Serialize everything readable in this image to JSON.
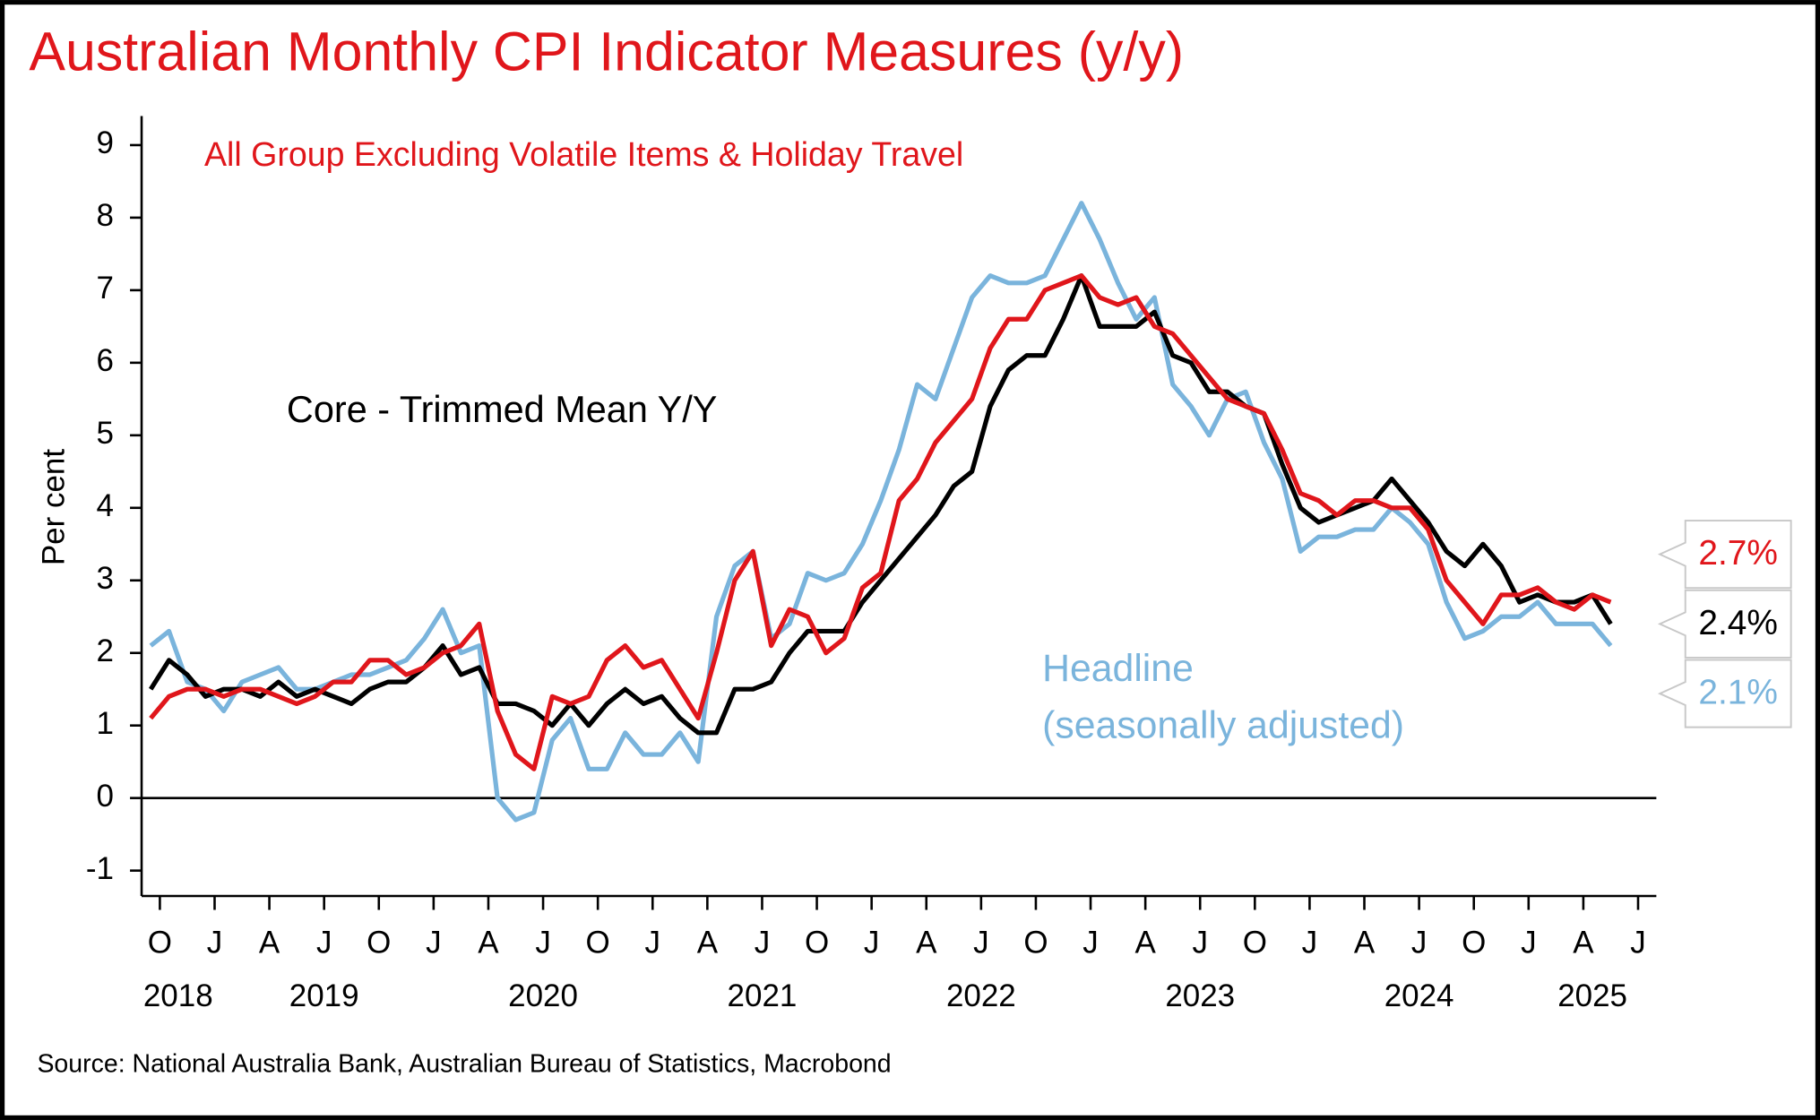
{
  "chart_data": {
    "type": "line",
    "title": "Australian Monthly CPI Indicator Measures (y/y)",
    "y_label": "Per cent",
    "source": "Source: National Australia Bank, Australian Bureau of Statistics, Macrobond",
    "x": [
      "2018-09",
      "2018-10",
      "2018-11",
      "2018-12",
      "2019-01",
      "2019-02",
      "2019-03",
      "2019-04",
      "2019-05",
      "2019-06",
      "2019-07",
      "2019-08",
      "2019-09",
      "2019-10",
      "2019-11",
      "2019-12",
      "2020-01",
      "2020-02",
      "2020-03",
      "2020-04",
      "2020-05",
      "2020-06",
      "2020-07",
      "2020-08",
      "2020-09",
      "2020-10",
      "2020-11",
      "2020-12",
      "2021-01",
      "2021-02",
      "2021-03",
      "2021-04",
      "2021-05",
      "2021-06",
      "2021-07",
      "2021-08",
      "2021-09",
      "2021-10",
      "2021-11",
      "2021-12",
      "2022-01",
      "2022-02",
      "2022-03",
      "2022-04",
      "2022-05",
      "2022-06",
      "2022-07",
      "2022-08",
      "2022-09",
      "2022-10",
      "2022-11",
      "2022-12",
      "2023-01",
      "2023-02",
      "2023-03",
      "2023-04",
      "2023-05",
      "2023-06",
      "2023-07",
      "2023-08",
      "2023-09",
      "2023-10",
      "2023-11",
      "2023-12",
      "2024-01",
      "2024-02",
      "2024-03",
      "2024-04",
      "2024-05",
      "2024-06",
      "2024-07",
      "2024-08",
      "2024-09",
      "2024-10",
      "2024-11",
      "2024-12",
      "2025-01",
      "2025-02",
      "2025-03",
      "2025-04",
      "2025-05"
    ],
    "series": [
      {
        "name": "All Group Excluding Volatile Items & Holiday Travel",
        "color": "#e0161b",
        "end_label": "2.7%",
        "values": [
          1.1,
          1.4,
          1.5,
          1.5,
          1.4,
          1.5,
          1.5,
          1.4,
          1.3,
          1.4,
          1.6,
          1.6,
          1.9,
          1.9,
          1.7,
          1.8,
          2.0,
          2.1,
          2.4,
          1.2,
          0.6,
          0.4,
          1.4,
          1.3,
          1.4,
          1.9,
          2.1,
          1.8,
          1.9,
          1.5,
          1.1,
          2.0,
          3.0,
          3.4,
          2.1,
          2.6,
          2.5,
          2.0,
          2.2,
          2.9,
          3.1,
          4.1,
          4.4,
          4.9,
          5.2,
          5.5,
          6.2,
          6.6,
          6.6,
          7.0,
          7.1,
          7.2,
          6.9,
          6.8,
          6.9,
          6.5,
          6.4,
          6.1,
          5.8,
          5.5,
          5.4,
          5.3,
          4.8,
          4.2,
          4.1,
          3.9,
          4.1,
          4.1,
          4.0,
          4.0,
          3.7,
          3.0,
          2.7,
          2.4,
          2.8,
          2.8,
          2.9,
          2.7,
          2.6,
          2.8,
          2.7
        ]
      },
      {
        "name": "Core - Trimmed Mean Y/Y",
        "color": "#000000",
        "end_label": "2.4%",
        "values": [
          1.5,
          1.9,
          1.7,
          1.4,
          1.5,
          1.5,
          1.4,
          1.6,
          1.4,
          1.5,
          1.4,
          1.3,
          1.5,
          1.6,
          1.6,
          1.8,
          2.1,
          1.7,
          1.8,
          1.3,
          1.3,
          1.2,
          1.0,
          1.3,
          1.0,
          1.3,
          1.5,
          1.3,
          1.4,
          1.1,
          0.9,
          0.9,
          1.5,
          1.5,
          1.6,
          2.0,
          2.3,
          2.3,
          2.3,
          2.7,
          3.0,
          3.3,
          3.6,
          3.9,
          4.3,
          4.5,
          5.4,
          5.9,
          6.1,
          6.1,
          6.6,
          7.2,
          6.5,
          6.5,
          6.5,
          6.7,
          6.1,
          6.0,
          5.6,
          5.6,
          5.4,
          5.3,
          4.6,
          4.0,
          3.8,
          3.9,
          4.0,
          4.1,
          4.4,
          4.1,
          3.8,
          3.4,
          3.2,
          3.5,
          3.2,
          2.7,
          2.8,
          2.7,
          2.7,
          2.8,
          2.4
        ]
      },
      {
        "name": "Headline",
        "subname": "(seasonally adjusted)",
        "color": "#7ab4dc",
        "end_label": "2.1%",
        "values": [
          2.1,
          2.3,
          1.6,
          1.5,
          1.2,
          1.6,
          1.7,
          1.8,
          1.5,
          1.5,
          1.6,
          1.7,
          1.7,
          1.8,
          1.9,
          2.2,
          2.6,
          2.0,
          2.1,
          0.0,
          -0.3,
          -0.2,
          0.8,
          1.1,
          0.4,
          0.4,
          0.9,
          0.6,
          0.6,
          0.9,
          0.5,
          2.5,
          3.2,
          3.4,
          2.2,
          2.4,
          3.1,
          3.0,
          3.1,
          3.5,
          4.1,
          4.8,
          5.7,
          5.5,
          6.2,
          6.9,
          7.2,
          7.1,
          7.1,
          7.2,
          7.7,
          8.2,
          7.7,
          7.1,
          6.6,
          6.9,
          5.7,
          5.4,
          5.0,
          5.5,
          5.6,
          4.9,
          4.4,
          3.4,
          3.6,
          3.6,
          3.7,
          3.7,
          4.0,
          3.8,
          3.5,
          2.7,
          2.2,
          2.3,
          2.5,
          2.5,
          2.7,
          2.4,
          2.4,
          2.4,
          2.1
        ]
      }
    ],
    "xlim": [
      "2018-09",
      "2025-08"
    ],
    "xticks": [
      {
        "value": "2018-10",
        "label": "O"
      },
      {
        "value": "2019-01",
        "label": "J"
      },
      {
        "value": "2019-04",
        "label": "A"
      },
      {
        "value": "2019-07",
        "label": "J"
      },
      {
        "value": "2019-10",
        "label": "O"
      },
      {
        "value": "2020-01",
        "label": "J"
      },
      {
        "value": "2020-04",
        "label": "A"
      },
      {
        "value": "2020-07",
        "label": "J"
      },
      {
        "value": "2020-10",
        "label": "O"
      },
      {
        "value": "2021-01",
        "label": "J"
      },
      {
        "value": "2021-04",
        "label": "A"
      },
      {
        "value": "2021-07",
        "label": "J"
      },
      {
        "value": "2021-10",
        "label": "O"
      },
      {
        "value": "2022-01",
        "label": "J"
      },
      {
        "value": "2022-04",
        "label": "A"
      },
      {
        "value": "2022-07",
        "label": "J"
      },
      {
        "value": "2022-10",
        "label": "O"
      },
      {
        "value": "2023-01",
        "label": "J"
      },
      {
        "value": "2023-04",
        "label": "A"
      },
      {
        "value": "2023-07",
        "label": "J"
      },
      {
        "value": "2023-10",
        "label": "O"
      },
      {
        "value": "2024-01",
        "label": "J"
      },
      {
        "value": "2024-04",
        "label": "A"
      },
      {
        "value": "2024-07",
        "label": "J"
      },
      {
        "value": "2024-10",
        "label": "O"
      },
      {
        "value": "2025-01",
        "label": "J"
      },
      {
        "value": "2025-04",
        "label": "A"
      },
      {
        "value": "2025-07",
        "label": "J"
      }
    ],
    "year_ticks": [
      2018,
      2019,
      2020,
      2021,
      2022,
      2023,
      2024,
      2025
    ],
    "ylim": [
      -1.35,
      9.4
    ],
    "yticks": [
      -1,
      0,
      1,
      2,
      3,
      4,
      5,
      6,
      7,
      8,
      9
    ],
    "grid": false
  }
}
